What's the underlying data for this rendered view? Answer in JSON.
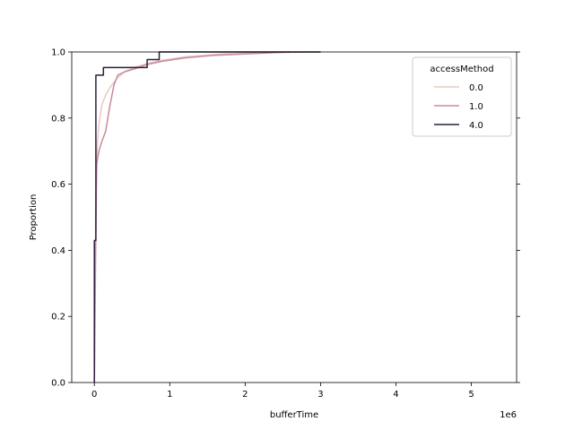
{
  "chart_data": {
    "type": "line",
    "subtype": "ecdf",
    "title": "",
    "xlabel": "bufferTime",
    "ylabel": "Proportion",
    "x_offset_label": "1e6",
    "x_scale_multiplier": 1000000,
    "xlim": [
      -300000,
      5600000
    ],
    "ylim": [
      0,
      1
    ],
    "x_ticks": [
      0,
      1000000,
      2000000,
      3000000,
      4000000,
      5000000
    ],
    "x_tick_labels": [
      "0",
      "1",
      "2",
      "3",
      "4",
      "5"
    ],
    "y_ticks": [
      0,
      0.2,
      0.4,
      0.6,
      0.8,
      1.0
    ],
    "y_tick_labels": [
      "0.0",
      "0.2",
      "0.4",
      "0.6",
      "0.8",
      "1.0"
    ],
    "grid": false,
    "legend": {
      "title": "accessMethod",
      "placement": "top-right"
    },
    "series": [
      {
        "name": "0.0",
        "color": "#ebc7c3",
        "points": [
          [
            0,
            0.0
          ],
          [
            8000,
            0.3
          ],
          [
            20000,
            0.55
          ],
          [
            40000,
            0.72
          ],
          [
            60000,
            0.78
          ],
          [
            100000,
            0.84
          ],
          [
            150000,
            0.87
          ],
          [
            200000,
            0.89
          ],
          [
            300000,
            0.92
          ],
          [
            400000,
            0.94
          ],
          [
            550000,
            0.955
          ],
          [
            700000,
            0.965
          ],
          [
            900000,
            0.975
          ],
          [
            1200000,
            0.985
          ],
          [
            1600000,
            0.993
          ],
          [
            2000000,
            0.997
          ],
          [
            3000000,
            1.0
          ]
        ]
      },
      {
        "name": "1.0",
        "color": "#c88a9b",
        "points": [
          [
            0,
            0.0
          ],
          [
            15000,
            0.35
          ],
          [
            30000,
            0.66
          ],
          [
            60000,
            0.7
          ],
          [
            100000,
            0.73
          ],
          [
            150000,
            0.76
          ],
          [
            200000,
            0.83
          ],
          [
            260000,
            0.9
          ],
          [
            310000,
            0.93
          ],
          [
            400000,
            0.94
          ],
          [
            550000,
            0.95
          ],
          [
            700000,
            0.962
          ],
          [
            900000,
            0.972
          ],
          [
            1200000,
            0.982
          ],
          [
            1600000,
            0.99
          ],
          [
            2100000,
            0.995
          ],
          [
            2600000,
            1.0
          ]
        ]
      },
      {
        "name": "4.0",
        "color": "#2d1e3e",
        "step": true,
        "points": [
          [
            0,
            0.0
          ],
          [
            0,
            0.43
          ],
          [
            20000,
            0.43
          ],
          [
            20000,
            0.93
          ],
          [
            120000,
            0.93
          ],
          [
            120000,
            0.953
          ],
          [
            700000,
            0.953
          ],
          [
            700000,
            0.977
          ],
          [
            860000,
            0.977
          ],
          [
            860000,
            1.0
          ],
          [
            3000000,
            1.0
          ]
        ]
      }
    ]
  }
}
